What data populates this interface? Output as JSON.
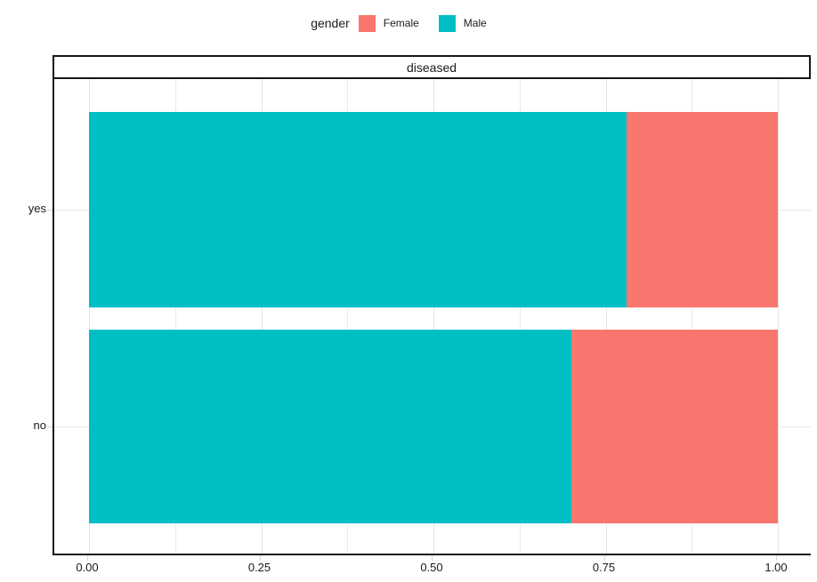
{
  "legend": {
    "title": "gender",
    "items": [
      {
        "label": "Female",
        "color": "#F8766D"
      },
      {
        "label": "Male",
        "color": "#00BFC4"
      }
    ]
  },
  "facet": {
    "label": "diseased"
  },
  "chart_data": {
    "type": "bar",
    "orientation": "horizontal",
    "stack": "fill",
    "facet_label": "diseased",
    "legend_title": "gender",
    "legend_position": "top",
    "categories": [
      "yes",
      "no"
    ],
    "series": [
      {
        "name": "Male",
        "color": "#00BFC4",
        "values": [
          0.78,
          0.7
        ]
      },
      {
        "name": "Female",
        "color": "#F8766D",
        "values": [
          0.22,
          0.3
        ]
      }
    ],
    "xlim": [
      0,
      1
    ],
    "x_ticks": [
      {
        "value": 0.0,
        "label": "0.00"
      },
      {
        "value": 0.25,
        "label": "0.25"
      },
      {
        "value": 0.5,
        "label": "0.50"
      },
      {
        "value": 0.75,
        "label": "0.75"
      },
      {
        "value": 1.0,
        "label": "1.00"
      }
    ],
    "x_minor": [
      0.125,
      0.375,
      0.625,
      0.875
    ],
    "title": "",
    "xlabel": "",
    "ylabel": "",
    "grid": true,
    "colors": {
      "grid": "#EBEBEB",
      "axis_line": "#161616",
      "background": "#FFFFFF",
      "text": "#1A1A1A"
    }
  }
}
